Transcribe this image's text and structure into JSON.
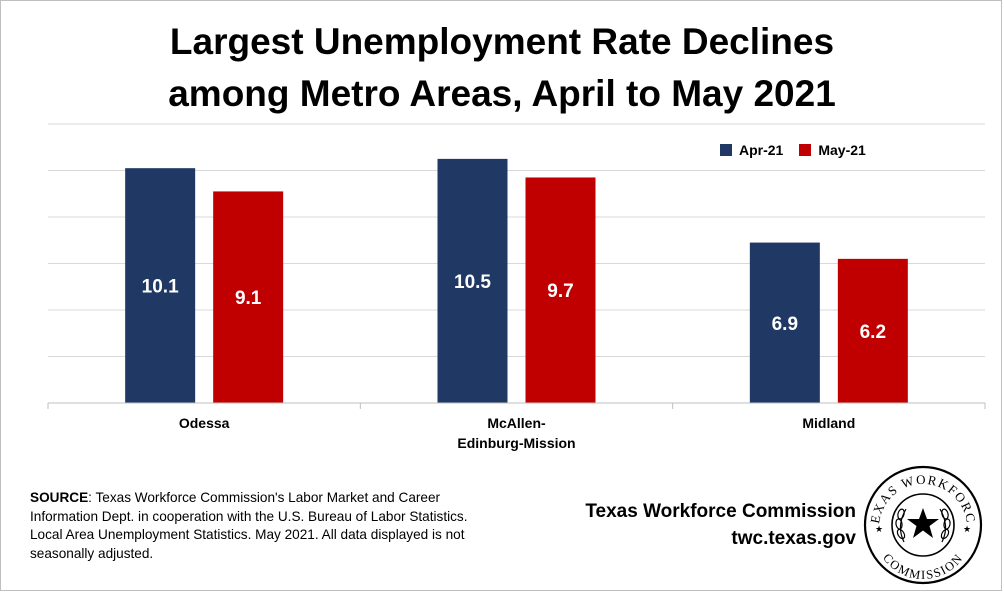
{
  "title": {
    "line1": "Largest Unemployment Rate Declines",
    "line2": "among Metro Areas, April to May 2021"
  },
  "chart_data": {
    "type": "bar",
    "categories": [
      [
        "Odessa"
      ],
      [
        "McAllen-",
        "Edinburg-Mission"
      ],
      [
        "Midland"
      ]
    ],
    "series": [
      {
        "name": "Apr-21",
        "color": "#203864",
        "values": [
          10.1,
          10.5,
          6.9
        ]
      },
      {
        "name": "May-21",
        "color": "#C00000",
        "values": [
          9.1,
          9.7,
          6.2
        ]
      }
    ],
    "ylim": [
      0,
      12
    ],
    "y_gridlines": [
      0,
      2,
      4,
      6,
      8,
      10,
      12
    ],
    "ytick_labels_visible": false,
    "grid": true,
    "legend_position": "top-right",
    "data_labels": true,
    "xlabel": "",
    "ylabel": ""
  },
  "source": {
    "label": "SOURCE",
    "text": ": Texas Workforce Commission's Labor Market and Career Information Dept. in cooperation with the U.S. Bureau of Labor Statistics. Local Area Unemployment Statistics. May 2021. All data displayed is not seasonally adjusted."
  },
  "agency": {
    "name": "Texas Workforce Commission",
    "url": "twc.texas.gov"
  },
  "seal": {
    "top_text": "TEXAS WORKFORCE",
    "bottom_text": "COMMISSION"
  }
}
